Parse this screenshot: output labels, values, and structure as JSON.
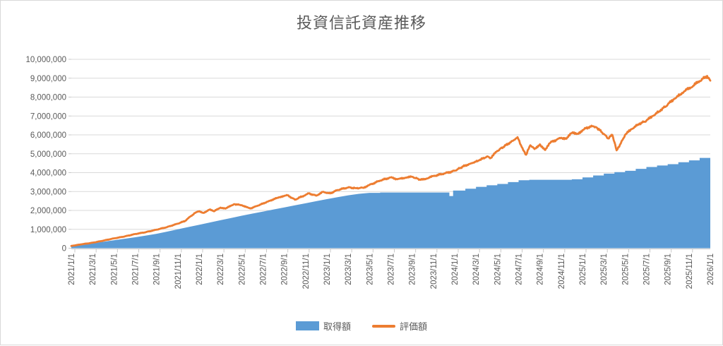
{
  "chart_data": {
    "type": "area+line",
    "title": "投資信託資産推移",
    "colors": {
      "acquisition_fill": "#5B9BD5",
      "valuation_line": "#ED7D31",
      "text": "#595959",
      "gridline": "#D9D9D9",
      "axis_line": "#C9C9C9",
      "frame_border": "#D9D9D9"
    },
    "y_axis": {
      "min": 0,
      "max": 10000000,
      "step": 1000000,
      "tick_labels": [
        "0",
        "1,000,000",
        "2,000,000",
        "3,000,000",
        "4,000,000",
        "5,000,000",
        "6,000,000",
        "7,000,000",
        "8,000,000",
        "9,000,000",
        "10,000,000"
      ],
      "grid": true
    },
    "x_axis": {
      "label_interval_months": 2,
      "labels": [
        "2021/1/1",
        "2021/3/1",
        "2021/5/1",
        "2021/7/1",
        "2021/9/1",
        "2021/11/1",
        "2022/1/1",
        "2022/3/1",
        "2022/5/1",
        "2022/7/1",
        "2022/9/1",
        "2022/11/1",
        "2023/1/1",
        "2023/3/1",
        "2023/5/1",
        "2023/7/1",
        "2023/9/1",
        "2023/11/1",
        "2024/1/1",
        "2024/3/1",
        "2024/5/1",
        "2024/7/1",
        "2024/9/1",
        "2024/11/1",
        "2025/1/1",
        "2025/3/1",
        "2025/5/1",
        "2025/7/1",
        "2025/9/1",
        "2025/11/1",
        "2026/1/1"
      ]
    },
    "legend_position": "bottom-center",
    "series": [
      {
        "name": "取得額",
        "type": "area",
        "color": "#5B9BD5",
        "start_month": "2021/1",
        "monthly_values": [
          100000,
          180000,
          260000,
          340000,
          420000,
          500000,
          580000,
          670000,
          760000,
          880000,
          1000000,
          1120000,
          1240000,
          1360000,
          1480000,
          1600000,
          1720000,
          1830000,
          1940000,
          2050000,
          2160000,
          2270000,
          2380000,
          2490000,
          2600000,
          2700000,
          2800000,
          2880000,
          2930000,
          2950000,
          2950000,
          2950000,
          2950000,
          2950000,
          2950000,
          2950000,
          3050000,
          3150000,
          3250000,
          3330000,
          3400000,
          3500000,
          3600000,
          3620000,
          3620000,
          3620000,
          3620000,
          3650000,
          3750000,
          3850000,
          3950000,
          4030000,
          4100000,
          4200000,
          4300000,
          4380000,
          4450000,
          4550000,
          4650000,
          4780000,
          4920000
        ],
        "notch_dip": {
          "from_month": 35.5,
          "to_month": 35.85,
          "value": 2760000
        }
      },
      {
        "name": "評価額",
        "type": "line",
        "color": "#ED7D31",
        "anchor_points_month_value": [
          [
            0,
            120000
          ],
          [
            1,
            210000
          ],
          [
            2,
            290000
          ],
          [
            3,
            400000
          ],
          [
            4,
            520000
          ],
          [
            5,
            620000
          ],
          [
            6,
            750000
          ],
          [
            7,
            850000
          ],
          [
            8,
            980000
          ],
          [
            9,
            1120000
          ],
          [
            10,
            1300000
          ],
          [
            10.7,
            1450000
          ],
          [
            11,
            1600000
          ],
          [
            11.7,
            1900000
          ],
          [
            12,
            1960000
          ],
          [
            12.4,
            1870000
          ],
          [
            13,
            2050000
          ],
          [
            13.4,
            1950000
          ],
          [
            14,
            2150000
          ],
          [
            14.5,
            2100000
          ],
          [
            15.3,
            2330000
          ],
          [
            16,
            2280000
          ],
          [
            16.8,
            2100000
          ],
          [
            17.5,
            2250000
          ],
          [
            18.5,
            2480000
          ],
          [
            19.5,
            2700000
          ],
          [
            20.3,
            2800000
          ],
          [
            21,
            2570000
          ],
          [
            21.7,
            2750000
          ],
          [
            22.3,
            2900000
          ],
          [
            23,
            2780000
          ],
          [
            23.6,
            2980000
          ],
          [
            24.3,
            2900000
          ],
          [
            25,
            3080000
          ],
          [
            26,
            3220000
          ],
          [
            26.7,
            3180000
          ],
          [
            27.4,
            3200000
          ],
          [
            28,
            3350000
          ],
          [
            29,
            3580000
          ],
          [
            30,
            3750000
          ],
          [
            30.6,
            3650000
          ],
          [
            31.2,
            3720000
          ],
          [
            32,
            3780000
          ],
          [
            32.8,
            3620000
          ],
          [
            33.5,
            3700000
          ],
          [
            34,
            3820000
          ],
          [
            35,
            3950000
          ],
          [
            36,
            4100000
          ],
          [
            36.8,
            4330000
          ],
          [
            37.5,
            4480000
          ],
          [
            38.3,
            4650000
          ],
          [
            39,
            4850000
          ],
          [
            39.4,
            4780000
          ],
          [
            40,
            5150000
          ],
          [
            40.8,
            5450000
          ],
          [
            41.5,
            5700000
          ],
          [
            41.9,
            5880000
          ],
          [
            42.3,
            5350000
          ],
          [
            42.7,
            4950000
          ],
          [
            43.1,
            5450000
          ],
          [
            43.5,
            5250000
          ],
          [
            44,
            5500000
          ],
          [
            44.5,
            5200000
          ],
          [
            45,
            5600000
          ],
          [
            45.6,
            5750000
          ],
          [
            46,
            5850000
          ],
          [
            46.5,
            5800000
          ],
          [
            47,
            6100000
          ],
          [
            47.5,
            6050000
          ],
          [
            48,
            6250000
          ],
          [
            48.7,
            6450000
          ],
          [
            49.3,
            6400000
          ],
          [
            50,
            6050000
          ],
          [
            50.4,
            5810000
          ],
          [
            50.8,
            6000000
          ],
          [
            51.2,
            5180000
          ],
          [
            51.6,
            5550000
          ],
          [
            52,
            6000000
          ],
          [
            52.6,
            6300000
          ],
          [
            53.2,
            6550000
          ],
          [
            54,
            6750000
          ],
          [
            54.6,
            7000000
          ],
          [
            55.2,
            7250000
          ],
          [
            56,
            7600000
          ],
          [
            56.6,
            7900000
          ],
          [
            57.2,
            8150000
          ],
          [
            57.8,
            8400000
          ],
          [
            58.4,
            8600000
          ],
          [
            59,
            8850000
          ],
          [
            59.7,
            9120000
          ],
          [
            60,
            8870000
          ]
        ]
      }
    ]
  }
}
